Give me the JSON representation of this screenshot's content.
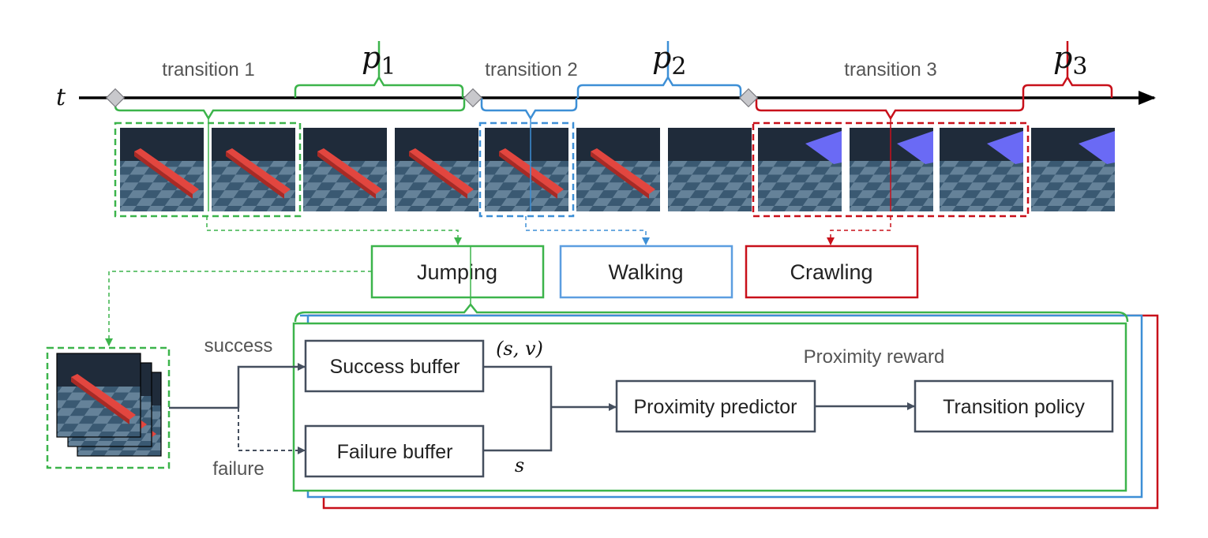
{
  "timeline": {
    "axis_label": "t",
    "transitions": [
      "transition 1",
      "transition 2",
      "transition 3"
    ],
    "primitives": [
      {
        "symbol": "p",
        "subscript": "1"
      },
      {
        "symbol": "p",
        "subscript": "2"
      },
      {
        "symbol": "p",
        "subscript": "3"
      }
    ]
  },
  "skills": [
    "Jumping",
    "Walking",
    "Crawling"
  ],
  "flow": {
    "success_label": "success",
    "failure_label": "failure",
    "success_buffer": "Success buffer",
    "failure_buffer": "Failure buffer",
    "success_tuple": "(s, v)",
    "failure_state": "s",
    "proximity_reward": "Proximity reward",
    "proximity_predictor": "Proximity predictor",
    "transition_policy": "Transition policy"
  },
  "colors": {
    "green": "#3cb44b",
    "blue": "#3d8fd6",
    "red": "#c8101a",
    "dark": "#454f5e",
    "diamond": "#c8c8cc",
    "frame_bg": "#1f2b3a",
    "floor": "#3b5a73",
    "bar": "#e04a43",
    "platform": "#6464f0"
  }
}
